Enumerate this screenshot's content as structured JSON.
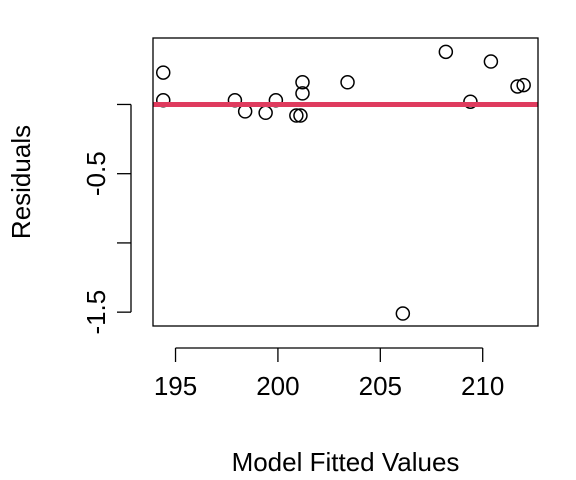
{
  "chart_data": {
    "type": "scatter",
    "title": "",
    "xlabel": "Model Fitted Values",
    "ylabel": "Residuals",
    "xlim": [
      193.9,
      212.7
    ],
    "ylim": [
      -1.6,
      0.48
    ],
    "xticks": [
      195,
      200,
      205,
      210
    ],
    "xtick_labels": [
      "195",
      "200",
      "205",
      "210"
    ],
    "yticks": [
      -1.5,
      -1.0,
      -0.5,
      0.0
    ],
    "ytick_labels": [
      "-1.5",
      "",
      "-0.5",
      ""
    ],
    "grid": false,
    "points": [
      {
        "x": 194.4,
        "y": 0.23
      },
      {
        "x": 194.4,
        "y": 0.03
      },
      {
        "x": 197.9,
        "y": 0.03
      },
      {
        "x": 198.4,
        "y": -0.05
      },
      {
        "x": 199.4,
        "y": -0.06
      },
      {
        "x": 199.9,
        "y": 0.03
      },
      {
        "x": 200.9,
        "y": -0.08
      },
      {
        "x": 201.1,
        "y": -0.08
      },
      {
        "x": 201.2,
        "y": 0.08
      },
      {
        "x": 201.2,
        "y": 0.16
      },
      {
        "x": 203.4,
        "y": 0.16
      },
      {
        "x": 206.1,
        "y": -1.51
      },
      {
        "x": 208.2,
        "y": 0.38
      },
      {
        "x": 209.4,
        "y": 0.02
      },
      {
        "x": 210.4,
        "y": 0.31
      },
      {
        "x": 211.7,
        "y": 0.13
      },
      {
        "x": 212.0,
        "y": 0.14
      }
    ],
    "reference_line": {
      "y": 0.0,
      "color": "#DF3B5E"
    },
    "point_color": "#000000"
  }
}
